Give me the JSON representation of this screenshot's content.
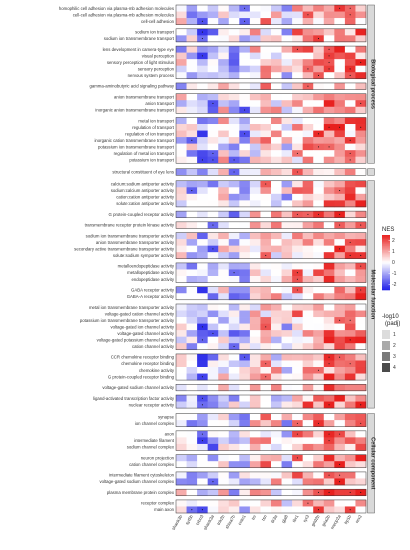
{
  "chart_data": {
    "type": "heatmap",
    "title": "",
    "xlabel": "",
    "ylabel": "",
    "columns": [
      "shank3b",
      "syt5b",
      "crbn3",
      "shank3a",
      "tnk2b",
      "shisa7b",
      "cntn1",
      "trc",
      "tsn",
      "tlr3a",
      "gja8",
      "tbr1",
      "ryr3",
      "grid2b",
      "gria2b",
      "mecp2a",
      "lrp1b",
      "rev2"
    ],
    "legend": {
      "color": {
        "title": "NES",
        "range": [
          -2.5,
          2.5
        ],
        "ticks": [
          2,
          1,
          0,
          -1,
          -2
        ],
        "low": "#2020e8",
        "mid": "#ffffff",
        "high": "#e8201e"
      },
      "fill": {
        "title_line1": "-log10",
        "title_line2": "(padj)",
        "ticks": [
          1,
          2,
          3,
          4
        ],
        "colors": [
          "#dcdcdc",
          "#aaaaaa",
          "#7a7a7a",
          "#4b4b4b"
        ]
      }
    },
    "sections": [
      {
        "title": "Biological process",
        "groups": [
          {
            "terms": [
              "homophilic cell adhesion via plasma-mb adhesion molecules",
              "cell-cell adhesion via plasma-mb adhesion molecules",
              "cell-cell adhesion"
            ]
          },
          {
            "terms": [
              "sodium ion transport",
              "sodium ion transmembrane transport"
            ]
          },
          {
            "terms": [
              "lens development in camera-type eye",
              "visual perception",
              "sensory perception of light stimulus",
              "sensory perception",
              "nervous system process"
            ]
          },
          {
            "terms": [
              "gamma-aminobutyric acid signaling pathway"
            ]
          },
          {
            "terms": [
              "anion transmembrane transport",
              "anion transport",
              "inorganic anion transmembrane transport"
            ]
          },
          {
            "terms": [
              "metal ion transport",
              "regulation of transport",
              "regulation of ion transport",
              "inorganic cation transmembrane transport",
              "potassium ion transmembrane transport",
              "regulation of metal ion transport",
              "potassium ion transport"
            ]
          }
        ]
      },
      {
        "title": "",
        "groups": [
          {
            "terms": [
              "structural constituent of eye lens"
            ]
          }
        ]
      },
      {
        "title": "Molecular function",
        "groups": [
          {
            "terms": [
              "calcium:sodium antiporter activity",
              "sodium:calcium antiporter activity",
              "cation:cation antiporter activity",
              "solute:cation antiporter activity"
            ]
          },
          {
            "terms": [
              "G protein-coupled receptor activity"
            ]
          },
          {
            "terms": [
              "transmembrane receptor protein kinase activity"
            ]
          },
          {
            "terms": [
              "sodium ion transmembrane transporter activity",
              "anion transmembrane transporter activity",
              "secondary active transmembrane transporter activity",
              "solute:sodium symporter activity"
            ]
          },
          {
            "terms": [
              "metalloendopeptidase activity",
              "metallopeptidase activity",
              "endopeptidase activity"
            ]
          },
          {
            "terms": [
              "GABA receptor activity",
              "GABA-A receptor activity"
            ]
          },
          {
            "terms": [
              "metal ion transmembrane transporter activity",
              "voltage-gated cation channel activity",
              "potassium ion transmembrane transporter activity",
              "voltage-gated ion channel activity",
              "voltage-gated channel activity",
              "voltage-gated potassium channel activity",
              "cation channel activity"
            ]
          },
          {
            "terms": [
              "CCR chemokine receptor binding",
              "chemokine receptor binding",
              "chemokine activity",
              "G protein-coupled receptor binding"
            ]
          },
          {
            "terms": [
              "voltage-gated sodium channel activity"
            ]
          },
          {
            "terms": [
              "ligand-activated transcription factor activity",
              "nuclear receptor activity"
            ]
          }
        ]
      },
      {
        "title": "Cellular component",
        "groups": [
          {
            "terms": [
              "synapse",
              "ion channel complex"
            ]
          },
          {
            "terms": [
              "axon",
              "intermediate filament",
              "sodium channel complex"
            ]
          },
          {
            "terms": [
              "neuron projection",
              "cation channel complex"
            ]
          },
          {
            "terms": [
              "intermediate filament cytoskeleton",
              "voltage-gated sodium channel complex"
            ]
          },
          {
            "terms": [
              "plasma membrane protein complex"
            ]
          },
          {
            "terms": [
              "receptor complex",
              "main axon"
            ]
          }
        ]
      }
    ]
  }
}
